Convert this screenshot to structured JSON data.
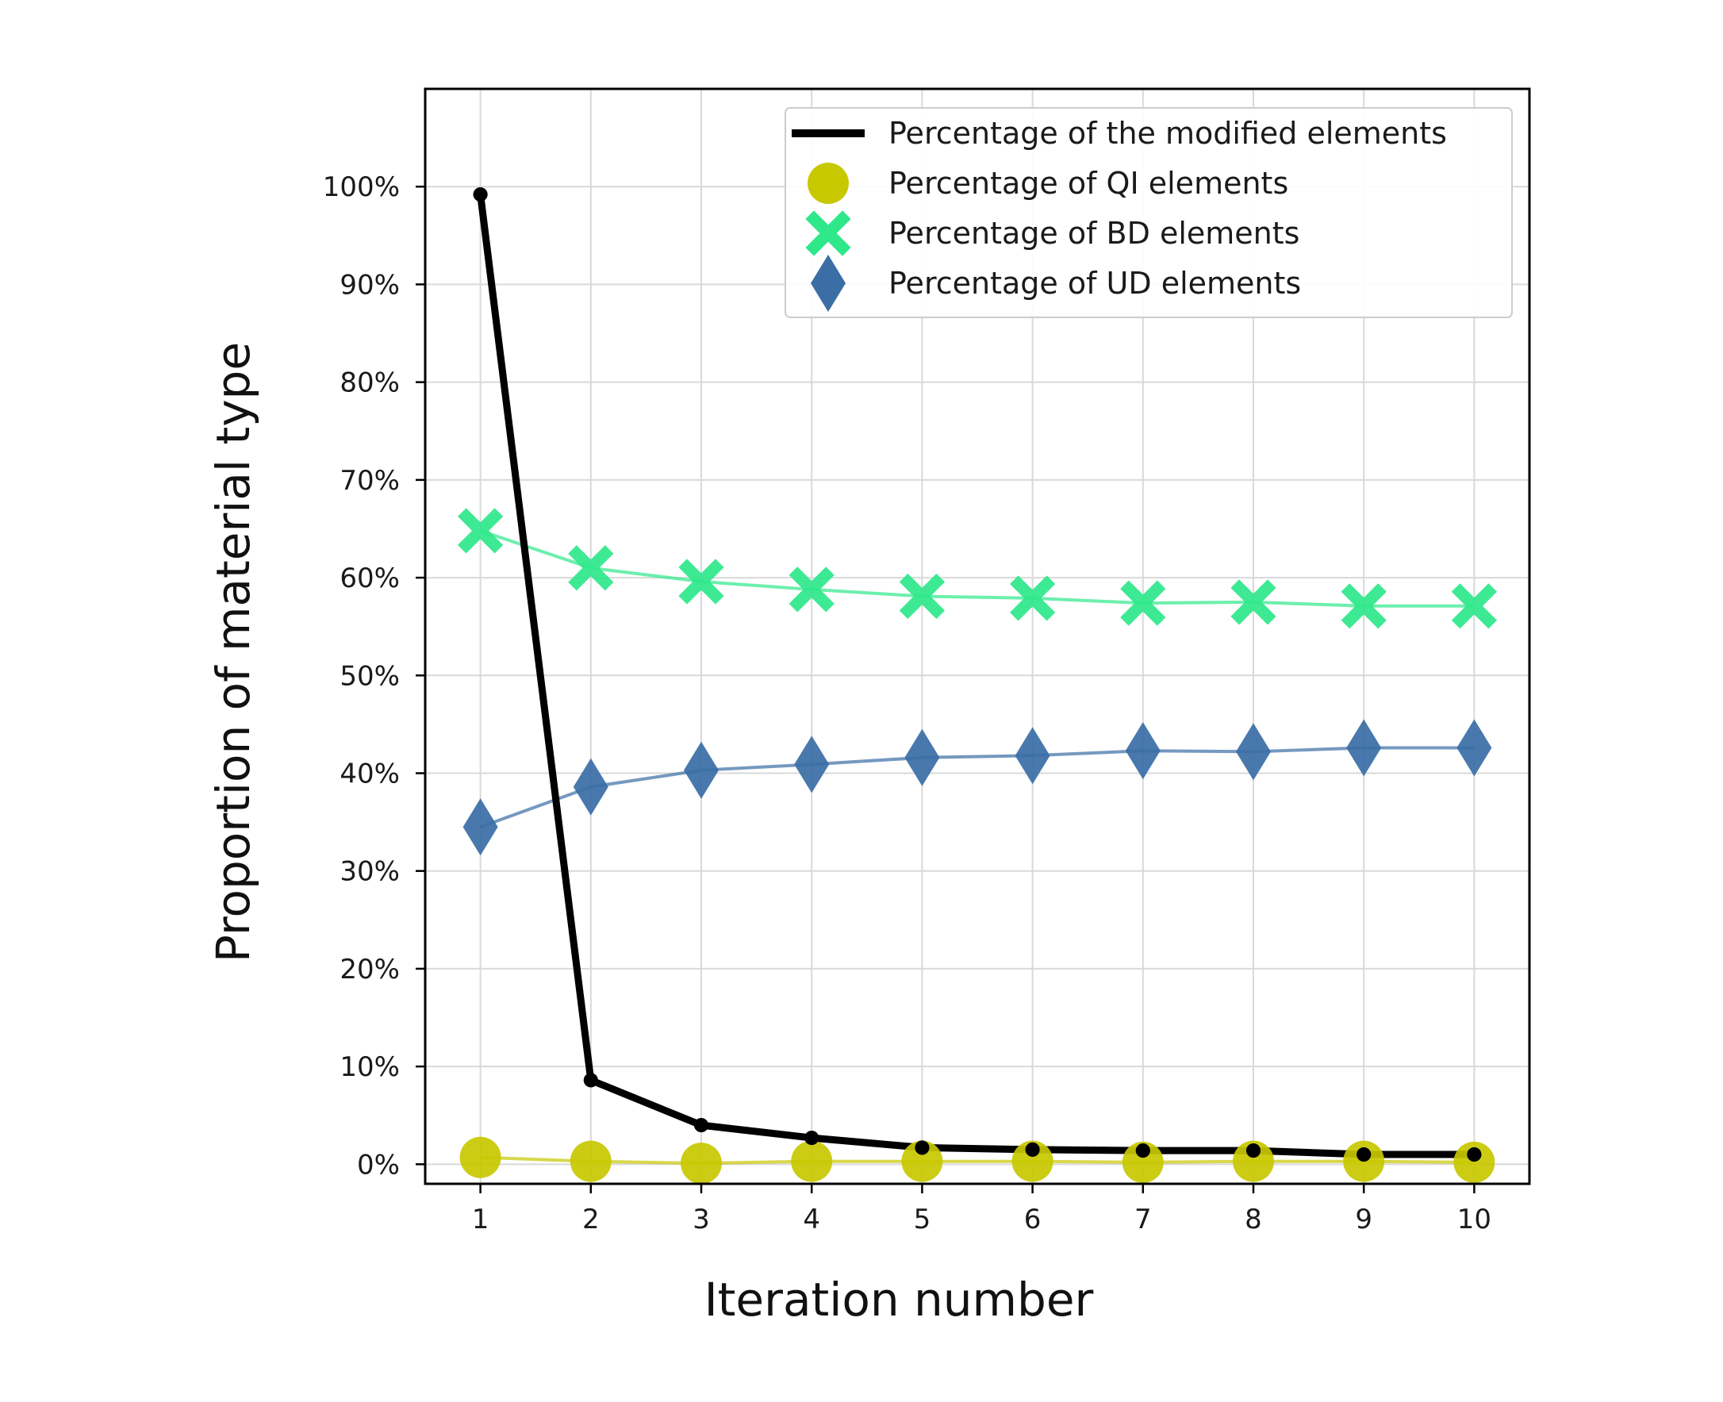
{
  "chart_data": {
    "type": "line",
    "title": "",
    "xlabel": "Iteration number",
    "ylabel": "Proportion of material type",
    "x": [
      1,
      2,
      3,
      4,
      5,
      6,
      7,
      8,
      9,
      10
    ],
    "x_tick_labels": [
      "1",
      "2",
      "3",
      "4",
      "5",
      "6",
      "7",
      "8",
      "9",
      "10"
    ],
    "xlim": [
      0.5,
      10.5
    ],
    "ylim": [
      -2,
      110
    ],
    "y_ticks": [
      0,
      10,
      20,
      30,
      40,
      50,
      60,
      70,
      80,
      90,
      100
    ],
    "y_tick_labels": [
      "0%",
      "10%",
      "20%",
      "30%",
      "40%",
      "50%",
      "60%",
      "70%",
      "80%",
      "90%",
      "100%"
    ],
    "grid": true,
    "legend_position": "top-right",
    "series": [
      {
        "name": "Percentage of the modified elements",
        "marker": "line-dot",
        "color": "#000000",
        "values": [
          99.2,
          8.6,
          4.0,
          2.7,
          1.7,
          1.5,
          1.4,
          1.4,
          1.0,
          1.0
        ]
      },
      {
        "name": "Percentage of QI elements",
        "marker": "circle",
        "color": "#c8c800",
        "values": [
          0.7,
          0.3,
          0.1,
          0.3,
          0.3,
          0.3,
          0.2,
          0.3,
          0.3,
          0.2
        ]
      },
      {
        "name": "Percentage of BD elements",
        "marker": "x",
        "color": "#2ee88a",
        "values": [
          64.8,
          61.0,
          59.6,
          58.8,
          58.1,
          57.9,
          57.4,
          57.5,
          57.1,
          57.1
        ]
      },
      {
        "name": "Percentage of UD elements",
        "marker": "diamond",
        "color": "#3a6ea5",
        "values": [
          34.5,
          38.6,
          40.3,
          40.9,
          41.6,
          41.8,
          42.3,
          42.2,
          42.6,
          42.6
        ]
      }
    ]
  }
}
